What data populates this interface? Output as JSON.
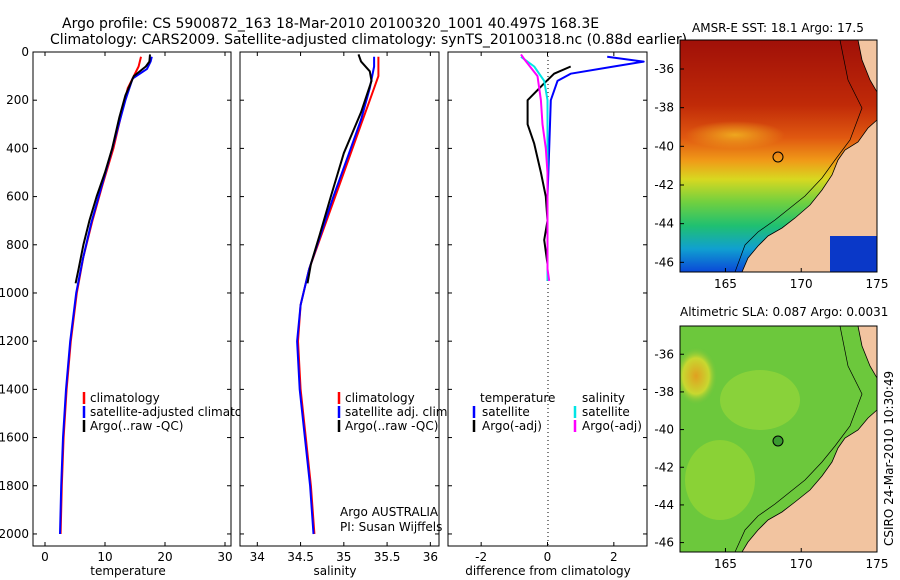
{
  "title_line1": "Argo profile: CS 5900872_163 18-Mar-2010 20100320_1001 40.497S 168.3E",
  "title_line2": "Climatology: CARS2009. Satellite-adjusted climatology: synTS_20100318.nc (0.88d earlier)",
  "colors": {
    "climatology": "#ff0000",
    "satellite": "#0000ff",
    "argo": "#000000",
    "sat_diff_sal": "#00e5e5",
    "argo_diff_sal": "#ff00ff",
    "land": "#f2c4a0"
  },
  "chart_data": [
    {
      "id": "temperature",
      "type": "line",
      "xlabel": "temperature",
      "ylabel": "",
      "xlim": [
        -2,
        31
      ],
      "ylim": [
        2050,
        0
      ],
      "xticks": [
        0,
        10,
        20,
        30
      ],
      "yticks": [
        0,
        200,
        400,
        600,
        800,
        1000,
        1200,
        1400,
        1600,
        1800,
        2000
      ],
      "legend": {
        "position": "bottom-right",
        "entries": [
          "climatology",
          "satellite-adjusted climatology",
          "Argo(..raw -QC)"
        ]
      },
      "series": [
        {
          "name": "climatology",
          "color": "#ff0000",
          "points": [
            [
              16.0,
              20
            ],
            [
              15.6,
              60
            ],
            [
              14.8,
              100
            ],
            [
              13.8,
              150
            ],
            [
              12.8,
              250
            ],
            [
              11.4,
              400
            ],
            [
              9.6,
              550
            ],
            [
              7.9,
              700
            ],
            [
              6.4,
              850
            ],
            [
              5.3,
              1000
            ],
            [
              4.3,
              1200
            ],
            [
              3.6,
              1400
            ],
            [
              3.1,
              1600
            ],
            [
              2.8,
              1800
            ],
            [
              2.6,
              2000
            ]
          ]
        },
        {
          "name": "satellite",
          "color": "#0000ff",
          "points": [
            [
              17.8,
              20
            ],
            [
              17.6,
              40
            ],
            [
              17.0,
              70
            ],
            [
              14.6,
              110
            ],
            [
              13.4,
              200
            ],
            [
              12.3,
              300
            ],
            [
              11.0,
              420
            ],
            [
              9.4,
              560
            ],
            [
              7.7,
              710
            ],
            [
              6.3,
              860
            ],
            [
              5.2,
              1000
            ],
            [
              4.2,
              1200
            ],
            [
              3.5,
              1400
            ],
            [
              3.0,
              1600
            ],
            [
              2.7,
              1800
            ],
            [
              2.5,
              2000
            ]
          ]
        },
        {
          "name": "Argo",
          "color": "#000000",
          "points": [
            [
              17.5,
              10
            ],
            [
              17.4,
              40
            ],
            [
              16.8,
              60
            ],
            [
              14.8,
              100
            ],
            [
              13.4,
              180
            ],
            [
              12.4,
              270
            ],
            [
              11.2,
              400
            ],
            [
              10.0,
              500
            ],
            [
              8.6,
              600
            ],
            [
              7.4,
              700
            ],
            [
              6.4,
              800
            ],
            [
              5.6,
              900
            ],
            [
              5.1,
              960
            ]
          ]
        }
      ]
    },
    {
      "id": "salinity",
      "type": "line",
      "xlabel": "salinity",
      "xlim": [
        33.8,
        36.1
      ],
      "ylim": [
        2050,
        0
      ],
      "xticks": [
        34,
        34.5,
        35,
        35.5,
        36
      ],
      "yticks": [
        0,
        200,
        400,
        600,
        800,
        1000,
        1200,
        1400,
        1600,
        1800,
        2000
      ],
      "legend": {
        "position": "bottom-right",
        "entries": [
          "climatology",
          "satellite adj. clim.",
          "Argo(..raw -QC)"
        ]
      },
      "annotation": [
        "Argo AUSTRALIA",
        "PI: Susan Wijffels"
      ],
      "series": [
        {
          "name": "climatology",
          "color": "#ff0000",
          "points": [
            [
              35.4,
              20
            ],
            [
              35.4,
              100
            ],
            [
              35.3,
              200
            ],
            [
              35.2,
              300
            ],
            [
              35.05,
              450
            ],
            [
              34.9,
              600
            ],
            [
              34.75,
              750
            ],
            [
              34.6,
              900
            ],
            [
              34.5,
              1050
            ],
            [
              34.47,
              1200
            ],
            [
              34.5,
              1400
            ],
            [
              34.56,
              1600
            ],
            [
              34.62,
              1800
            ],
            [
              34.66,
              2000
            ]
          ]
        },
        {
          "name": "satellite",
          "color": "#0000ff",
          "points": [
            [
              35.35,
              20
            ],
            [
              35.35,
              60
            ],
            [
              35.3,
              150
            ],
            [
              35.2,
              280
            ],
            [
              35.05,
              430
            ],
            [
              34.88,
              600
            ],
            [
              34.74,
              750
            ],
            [
              34.6,
              900
            ],
            [
              34.5,
              1050
            ],
            [
              34.46,
              1200
            ],
            [
              34.49,
              1400
            ],
            [
              34.55,
              1600
            ],
            [
              34.61,
              1800
            ],
            [
              34.65,
              2000
            ]
          ]
        },
        {
          "name": "Argo",
          "color": "#000000",
          "points": [
            [
              35.17,
              10
            ],
            [
              35.2,
              40
            ],
            [
              35.3,
              80
            ],
            [
              35.32,
              120
            ],
            [
              35.2,
              250
            ],
            [
              35.0,
              420
            ],
            [
              34.85,
              600
            ],
            [
              34.72,
              760
            ],
            [
              34.62,
              880
            ],
            [
              34.58,
              960
            ]
          ]
        }
      ]
    },
    {
      "id": "difference",
      "type": "line",
      "xlabel": "difference from climatology",
      "xlim": [
        -3,
        3
      ],
      "ylim": [
        2050,
        0
      ],
      "xticks": [
        -2,
        0,
        2
      ],
      "yticks": [
        0,
        200,
        400,
        600,
        800,
        1000,
        1200,
        1400,
        1600,
        1800,
        2000
      ],
      "legend": {
        "position": "bottom-center",
        "entries": [
          "temperature",
          "salinity",
          "satellite",
          "satellite",
          "Argo(-adj)",
          "Argo(-adj)"
        ]
      },
      "series": [
        {
          "name": "temperature satellite",
          "color": "#0000ff",
          "points": [
            [
              1.8,
              20
            ],
            [
              2.9,
              40
            ],
            [
              2.0,
              60
            ],
            [
              0.7,
              90
            ],
            [
              0.3,
              120
            ],
            [
              0.1,
              200
            ],
            [
              0.05,
              400
            ],
            [
              0.0,
              600
            ],
            [
              0.0,
              800
            ],
            [
              0.0,
              950
            ]
          ]
        },
        {
          "name": "temperature Argo(-adj)",
          "color": "#000000",
          "points": [
            [
              0.7,
              60
            ],
            [
              0.2,
              90
            ],
            [
              -0.1,
              130
            ],
            [
              -0.6,
              200
            ],
            [
              -0.6,
              300
            ],
            [
              -0.4,
              380
            ],
            [
              -0.2,
              500
            ],
            [
              -0.05,
              600
            ],
            [
              0.0,
              700
            ],
            [
              -0.1,
              780
            ],
            [
              0.0,
              880
            ],
            [
              0.0,
              950
            ]
          ]
        },
        {
          "name": "salinity satellite",
          "color": "#00e5e5",
          "points": [
            [
              -0.8,
              20
            ],
            [
              -0.4,
              60
            ],
            [
              -0.1,
              120
            ],
            [
              0.0,
              200
            ],
            [
              0.0,
              400
            ],
            [
              0.0,
              600
            ],
            [
              0.0,
              800
            ],
            [
              0.0,
              950
            ]
          ]
        },
        {
          "name": "salinity Argo(-adj)",
          "color": "#ff00ff",
          "points": [
            [
              -0.8,
              10
            ],
            [
              -0.7,
              30
            ],
            [
              -0.3,
              100
            ],
            [
              -0.2,
              200
            ],
            [
              -0.15,
              300
            ],
            [
              -0.05,
              400
            ],
            [
              0.0,
              500
            ],
            [
              0.0,
              700
            ],
            [
              0.0,
              900
            ],
            [
              0.05,
              950
            ]
          ]
        }
      ]
    },
    {
      "id": "sst_map",
      "type": "heatmap",
      "title": "AMSR-E SST: 18.1  Argo: 17.5",
      "xlim": [
        162,
        175
      ],
      "ylim": [
        -46.5,
        -34.5
      ],
      "xticks": [
        165,
        170,
        175
      ],
      "yticks": [
        -36,
        -38,
        -40,
        -42,
        -44,
        -46
      ],
      "marker": {
        "lon": 168.3,
        "lat": -40.5
      }
    },
    {
      "id": "sla_map",
      "type": "heatmap",
      "title": "Altimetric SLA: 0.087  Argo: 0.0031",
      "xlim": [
        162,
        175
      ],
      "ylim": [
        -46.5,
        -34.5
      ],
      "xticks": [
        165,
        170,
        175
      ],
      "yticks": [
        -36,
        -38,
        -40,
        -42,
        -44,
        -46
      ],
      "marker": {
        "lon": 168.3,
        "lat": -40.5
      }
    }
  ],
  "credit": "CSIRO 24-Mar-2010 10:30:49"
}
